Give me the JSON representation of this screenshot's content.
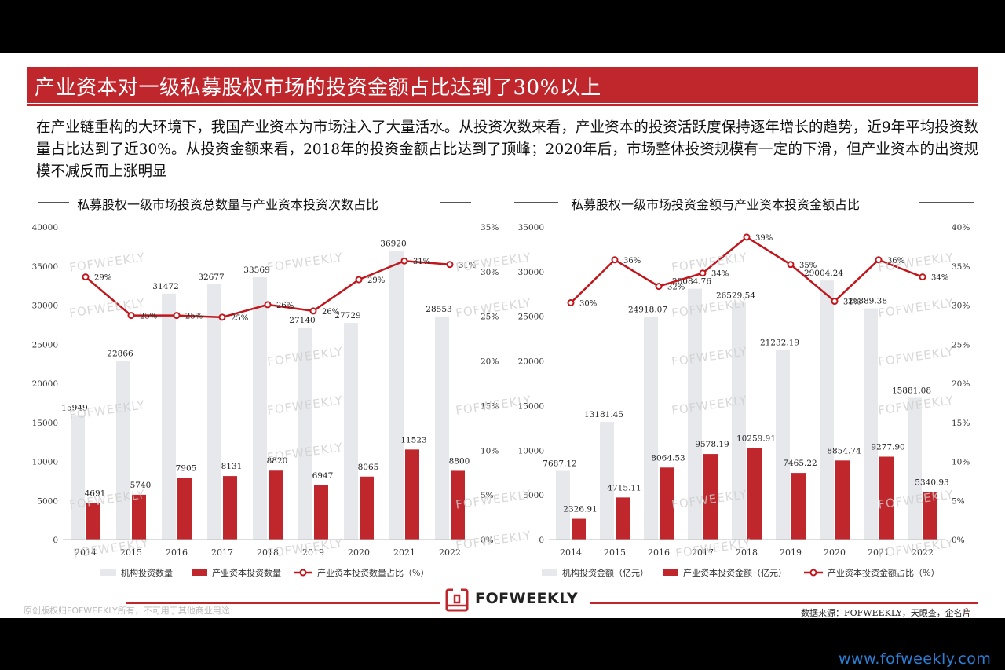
{
  "title": "产业资本对一级私募股权市场的投资金额占比达到了30%以上",
  "body_text": "在产业链重构的大环境下，我国产业资本为市场注入了大量活水。从投资次数来看，产业资本的投资活跃度保持逐年增长的趋势，近9年平均投资数量占比达到了近30%。从投资金额来看，2018年的投资金额占比达到了顶峰；2020年后，市场整体投资规模有一定的下滑，但产业资本的出资规模不减反而上涨明显",
  "colors": {
    "accent": "#c0272d",
    "gray_bar": "#e6e8ec",
    "line": "#c0161c"
  },
  "watermark": "FOFWEEKLY",
  "footer": {
    "logo_text": "FOFWEEKLY",
    "copyright": "原创版权归FOFWEEKLY所有，不可用于其他商业用途",
    "source": "数据来源：FOFWEEKLY，天眼查，企名片",
    "page_number": "1",
    "website": "www.fofweekly.com"
  },
  "chart_data": [
    {
      "type": "bar",
      "title": "私募股权一级市场投资总数量与产业资本投资次数占比",
      "categories": [
        "2014",
        "2015",
        "2016",
        "2017",
        "2018",
        "2019",
        "2020",
        "2021",
        "2022"
      ],
      "ylim": [
        0,
        40000
      ],
      "yticks": [
        "0",
        "5000",
        "10000",
        "15000",
        "20000",
        "25000",
        "30000",
        "35000",
        "40000"
      ],
      "y2lim": [
        0,
        35
      ],
      "y2ticks": [
        "0%",
        "5%",
        "10%",
        "15%",
        "20%",
        "25%",
        "30%",
        "35%"
      ],
      "series": [
        {
          "name": "机构投资数量",
          "kind": "bar",
          "values": [
            15949,
            22866,
            31472,
            32677,
            33569,
            27140,
            27729,
            36920,
            28553
          ],
          "labels": [
            "15949",
            "22866",
            "31472",
            "32677",
            "33569",
            "27140",
            "27729",
            "36920",
            "28553"
          ]
        },
        {
          "name": "产业资本投资数量",
          "kind": "bar",
          "values": [
            4691,
            5740,
            7905,
            8131,
            8820,
            6947,
            8065,
            11523,
            8800
          ],
          "labels": [
            "4691",
            "5740",
            "7905",
            "8131",
            "8820",
            "6947",
            "8065",
            "11523",
            "8800"
          ]
        },
        {
          "name": "产业资本投资数量占比（%）",
          "kind": "line",
          "axis": "right",
          "values": [
            29.4,
            25.1,
            25.1,
            24.9,
            26.3,
            25.6,
            29.1,
            31.2,
            30.8
          ],
          "labels": [
            "29%",
            "25%",
            "25%",
            "25%",
            "26%",
            "26%",
            "29%",
            "31%",
            "31%"
          ]
        }
      ]
    },
    {
      "type": "bar",
      "title": "私募股权一级市场投资金额与产业资本投资金额占比",
      "categories": [
        "2014",
        "2015",
        "2016",
        "2017",
        "2018",
        "2019",
        "2020",
        "2021",
        "2022"
      ],
      "ylim": [
        0,
        35000
      ],
      "yticks": [
        "0",
        "5000",
        "10000",
        "15000",
        "20000",
        "25000",
        "30000",
        "35000"
      ],
      "y2lim": [
        0,
        40
      ],
      "y2ticks": [
        "0%",
        "5%",
        "10%",
        "15%",
        "20%",
        "25%",
        "30%",
        "35%",
        "40%"
      ],
      "series": [
        {
          "name": "机构投资金额（亿元）",
          "kind": "bar",
          "values": [
            7687.12,
            13181.45,
            24918.07,
            28084.76,
            26529.54,
            21232.19,
            29004.24,
            25889.38,
            15881.08
          ],
          "labels": [
            "7687.12",
            "13181.45",
            "24918.07",
            "28084.76",
            "26529.54",
            "21232.19",
            "29004.24",
            "25889.38",
            "15881.08"
          ]
        },
        {
          "name": "产业资本投资金额（亿元）",
          "kind": "bar",
          "values": [
            2326.91,
            4715.11,
            8064.53,
            9578.19,
            10259.91,
            7465.22,
            8854.74,
            9277.9,
            5340.93
          ],
          "labels": [
            "2326.91",
            "4715.11",
            "8064.53",
            "9578.19",
            "10259.91",
            "7465.22",
            "8854.74",
            "9277.90",
            "5340.93"
          ]
        },
        {
          "name": "产业资本投资金额占比（%）",
          "kind": "line",
          "axis": "right",
          "values": [
            30.3,
            35.8,
            32.4,
            34.1,
            38.7,
            35.2,
            30.5,
            35.8,
            33.6
          ],
          "labels": [
            "30%",
            "36%",
            "32%",
            "34%",
            "39%",
            "35%",
            "31%",
            "36%",
            "34%"
          ]
        }
      ]
    }
  ]
}
